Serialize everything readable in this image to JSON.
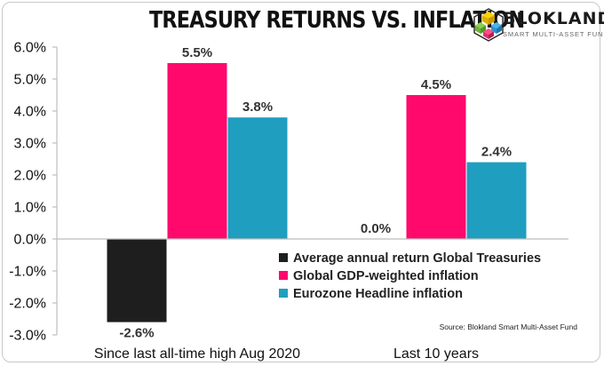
{
  "header": {
    "brand_name": "BLOKLAND",
    "tagline": "SMART MULTI-ASSET FUND",
    "logo_icon": "isometric-cube-logo-icon"
  },
  "chart_data": {
    "type": "bar",
    "title": "TREASURY RETURNS VS. INFLATION",
    "categories": [
      "Since last all-time high Aug 2020",
      "Last 10 years"
    ],
    "series": [
      {
        "name": "Average annual return Global Treasuries",
        "color": "#1e1e1e",
        "values": [
          -2.6,
          0.0
        ],
        "labels": [
          "-2.6%",
          "0.0%"
        ]
      },
      {
        "name": "Global GDP-weighted inflation",
        "color": "#ff0a6c",
        "values": [
          5.5,
          4.5
        ],
        "labels": [
          "5.5%",
          "4.5%"
        ]
      },
      {
        "name": "Eurozone Headline inflation",
        "color": "#1f9ebf",
        "values": [
          3.8,
          2.4
        ],
        "labels": [
          "3.8%",
          "2.4%"
        ]
      }
    ],
    "y_ticks": [
      6.0,
      5.0,
      4.0,
      3.0,
      2.0,
      1.0,
      0.0,
      -1.0,
      -2.0,
      -3.0
    ],
    "y_tick_labels": [
      "6.0%",
      "5.0%",
      "4.0%",
      "3.0%",
      "2.0%",
      "1.0%",
      "0.0%",
      "-1.0%",
      "-2.0%",
      "-3.0%"
    ],
    "ylim": [
      -3.0,
      6.0
    ],
    "xlabel": "",
    "ylabel": "",
    "grid": false,
    "legend_position": "bottom-right",
    "source": "Source: Blokland Smart Multi-Asset Fund"
  }
}
